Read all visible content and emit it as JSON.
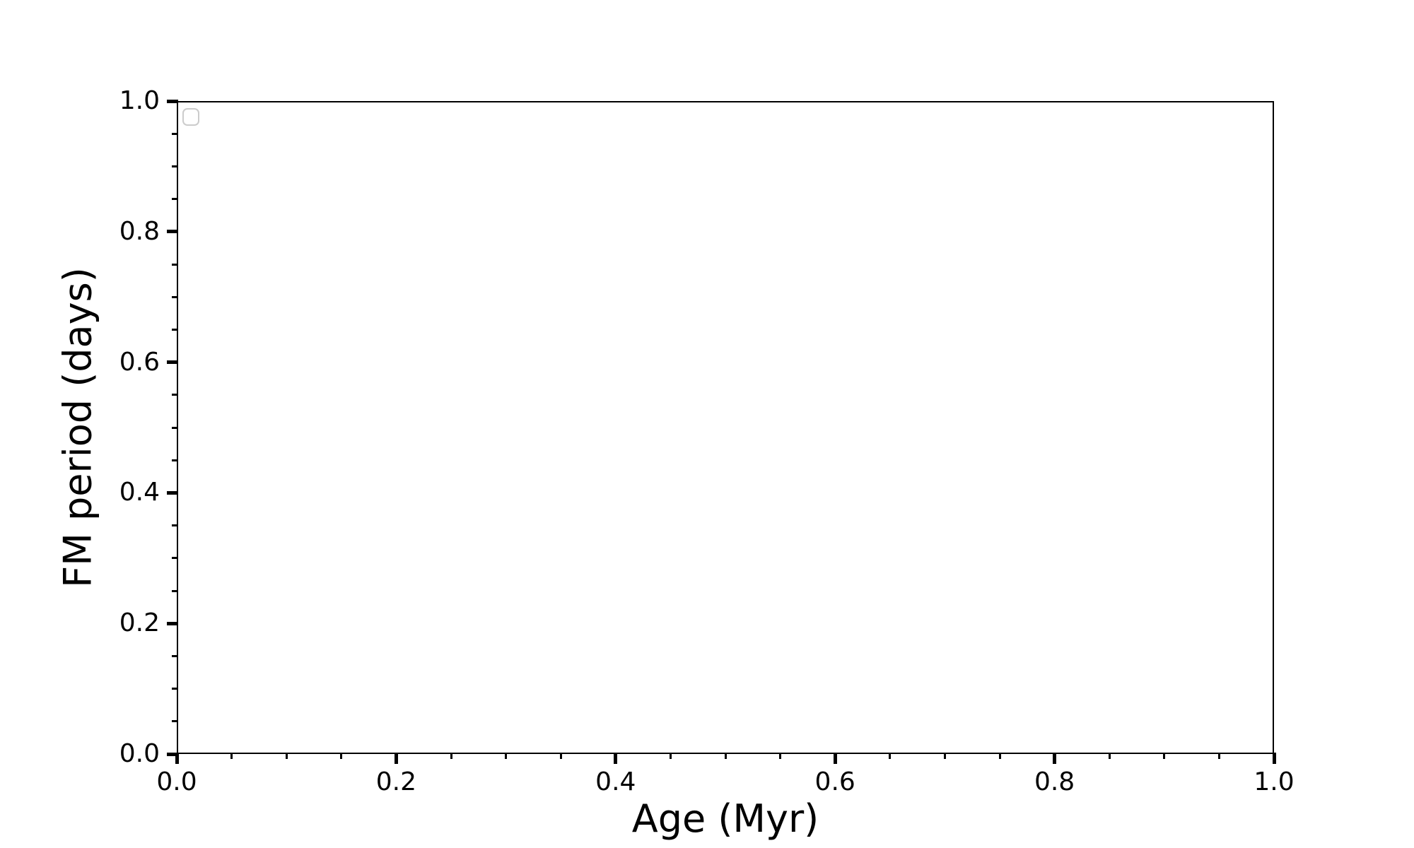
{
  "figure": {
    "background_color": "#ffffff"
  },
  "chart_data": {
    "type": "scatter",
    "title": "",
    "xlabel": "Age (Myr)",
    "ylabel": "FM period (days)",
    "xlim": [
      0.0,
      1.0
    ],
    "ylim": [
      0.0,
      1.0
    ],
    "x_major_ticks": [
      0.0,
      0.2,
      0.4,
      0.6,
      0.8,
      1.0
    ],
    "x_major_tick_labels": [
      "0.0",
      "0.2",
      "0.4",
      "0.6",
      "0.8",
      "1.0"
    ],
    "y_major_ticks": [
      0.0,
      0.2,
      0.4,
      0.6,
      0.8,
      1.0
    ],
    "y_major_tick_labels": [
      "0.0",
      "0.2",
      "0.4",
      "0.6",
      "0.8",
      "1.0"
    ],
    "minor_tick_step": 0.05,
    "grid": false,
    "series": [],
    "legend": {
      "visible": true,
      "entries": [],
      "position": "upper-left",
      "border_color": "#cccccc"
    },
    "axis_color": "#000000"
  }
}
